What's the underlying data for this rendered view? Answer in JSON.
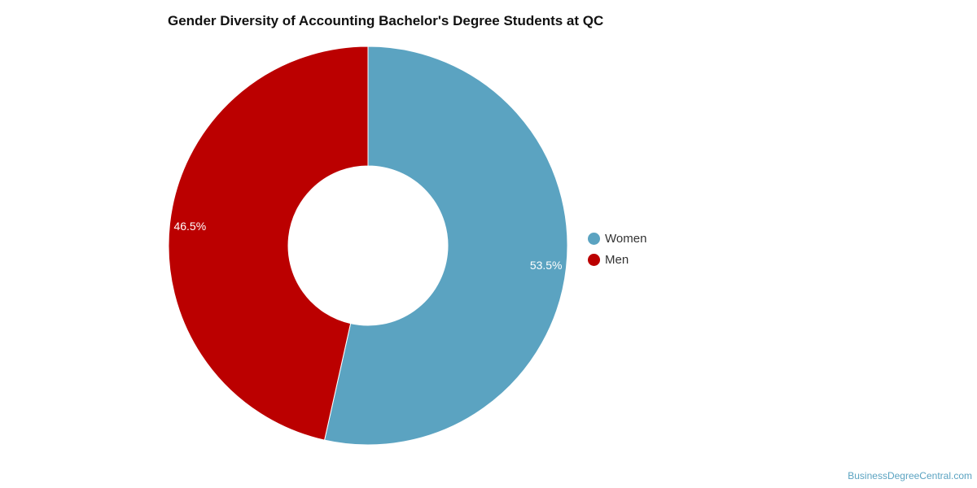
{
  "title": "Gender Diversity of Accounting Bachelor's Degree Students at QC",
  "watermark": "BusinessDegreeCentral.com",
  "chart_data": {
    "type": "pie",
    "donut": true,
    "title": "Gender Diversity of Accounting Bachelor's Degree Students at QC",
    "categories": [
      "Women",
      "Men"
    ],
    "values": [
      53.5,
      46.5
    ],
    "value_labels": [
      "53.5%",
      "46.5%"
    ],
    "colors": [
      "#5ba3c1",
      "#bb0000"
    ],
    "legend_position": "right"
  }
}
